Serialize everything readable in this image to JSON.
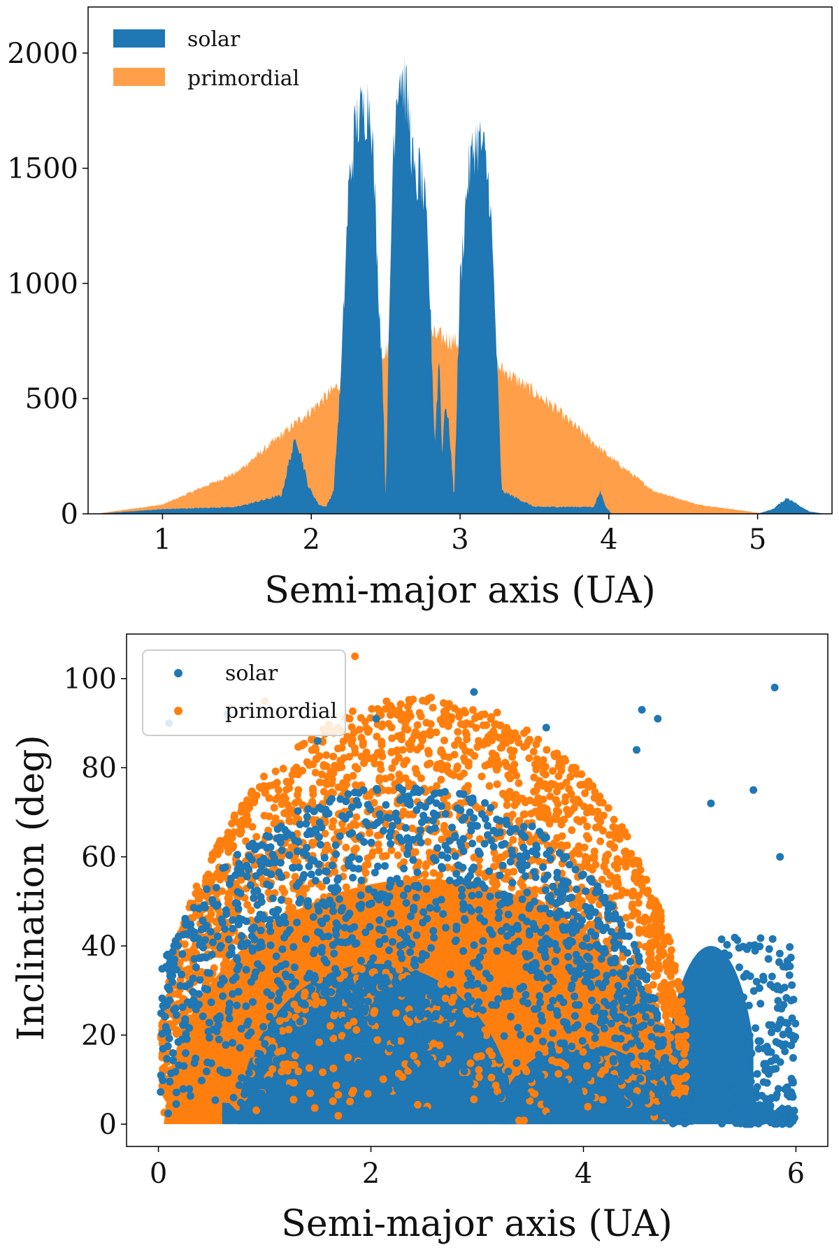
{
  "chart_data": [
    {
      "type": "area",
      "title": "",
      "xlabel": "Semi-major axis (UA)",
      "ylabel": "",
      "xlim": [
        0.5,
        5.5
      ],
      "ylim": [
        0,
        2200
      ],
      "xticks": [
        "1",
        "2",
        "3",
        "4",
        "5"
      ],
      "yticks": [
        "0",
        "500",
        "1000",
        "1500",
        "2000"
      ],
      "legend_position": "top-left",
      "series": [
        {
          "name": "solar",
          "color": "#1f77b4",
          "x": [
            0.55,
            1.0,
            1.5,
            1.8,
            1.86,
            1.9,
            1.93,
            1.98,
            2.05,
            2.1,
            2.15,
            2.2,
            2.25,
            2.3,
            2.35,
            2.4,
            2.45,
            2.48,
            2.5,
            2.52,
            2.55,
            2.58,
            2.6,
            2.63,
            2.66,
            2.7,
            2.73,
            2.77,
            2.8,
            2.83,
            2.86,
            2.88,
            2.9,
            2.93,
            2.96,
            3.0,
            3.05,
            3.1,
            3.15,
            3.2,
            3.24,
            3.28,
            3.5,
            3.9,
            3.94,
            3.98,
            4.02,
            4.5,
            5.0,
            5.1,
            5.2,
            5.27,
            5.35,
            5.45
          ],
          "values": [
            0,
            20,
            30,
            80,
            250,
            330,
            260,
            120,
            40,
            30,
            100,
            600,
            1400,
            1700,
            1750,
            1800,
            1000,
            600,
            60,
            700,
            1600,
            1900,
            1920,
            1850,
            1700,
            1400,
            1500,
            1300,
            900,
            300,
            700,
            250,
            500,
            350,
            60,
            1000,
            1450,
            1620,
            1600,
            1400,
            800,
            100,
            30,
            30,
            100,
            30,
            0,
            0,
            0,
            20,
            70,
            40,
            10,
            0
          ]
        },
        {
          "name": "primordial",
          "color": "#ff7f0e",
          "x": [
            0.55,
            1.0,
            1.5,
            2.0,
            2.3,
            2.6,
            2.8,
            3.0,
            3.3,
            3.6,
            4.0,
            4.3,
            4.6,
            5.0,
            5.3
          ],
          "values": [
            0,
            40,
            180,
            450,
            630,
            750,
            780,
            740,
            620,
            480,
            250,
            100,
            40,
            5,
            0
          ]
        }
      ]
    },
    {
      "type": "scatter",
      "title": "",
      "xlabel": "Semi-major axis (UA)",
      "ylabel": "Inclination (deg)",
      "xlim": [
        -0.3,
        6.3
      ],
      "ylim": [
        -5,
        110
      ],
      "xticks": [
        "0",
        "2",
        "4",
        "6"
      ],
      "yticks": [
        "0",
        "20",
        "40",
        "60",
        "80",
        "100"
      ],
      "legend_position": "top-left",
      "series": [
        {
          "name": "solar",
          "color": "#1f77b4"
        },
        {
          "name": "primordial",
          "color": "#ff7f0e"
        }
      ]
    }
  ]
}
